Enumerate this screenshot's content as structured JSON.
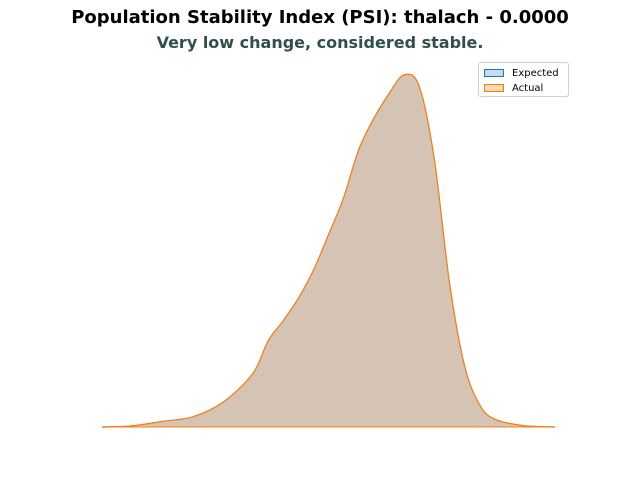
{
  "chart_data": {
    "type": "area",
    "title": "Population Stability Index (PSI): thalach - 0.0000",
    "subtitle": "Very low change, considered stable.",
    "xlabel": "",
    "ylabel": "",
    "axes_visible": false,
    "grid": false,
    "legend_placement": "top-right",
    "x": [
      70,
      80,
      90,
      100,
      110,
      120,
      125,
      130,
      135,
      140,
      145,
      150,
      155,
      160,
      165,
      170,
      175,
      180,
      185,
      190,
      195,
      200,
      210,
      220
    ],
    "series": [
      {
        "name": "Expected",
        "color": "#1f77b4",
        "fill": "#c6dbef",
        "values": [
          0.0,
          0.01,
          0.05,
          0.09,
          0.22,
          0.48,
          0.77,
          0.95,
          1.15,
          1.4,
          1.72,
          2.05,
          2.48,
          2.76,
          2.98,
          3.15,
          3.05,
          2.4,
          1.3,
          0.55,
          0.2,
          0.07,
          0.01,
          0.0
        ]
      },
      {
        "name": "Actual",
        "color": "#ff7f0e",
        "fill": "#fdd9b5",
        "values": [
          0.0,
          0.01,
          0.05,
          0.09,
          0.22,
          0.48,
          0.77,
          0.95,
          1.15,
          1.4,
          1.72,
          2.05,
          2.48,
          2.76,
          2.98,
          3.15,
          3.05,
          2.4,
          1.3,
          0.55,
          0.2,
          0.07,
          0.01,
          0.0
        ]
      }
    ],
    "overlap_fill": "#d5c4b4"
  }
}
